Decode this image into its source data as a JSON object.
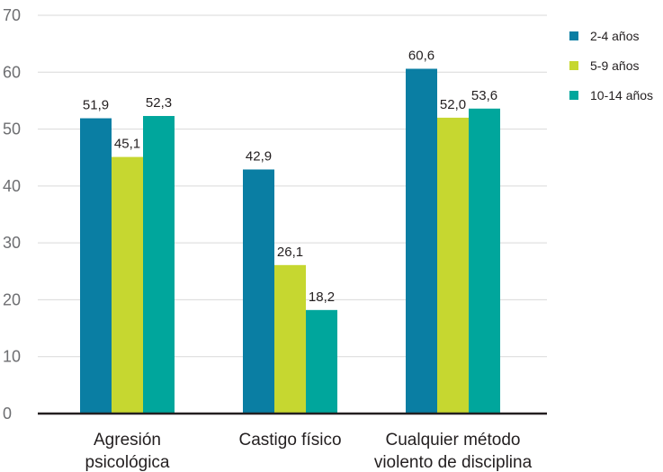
{
  "chart_data": {
    "type": "bar",
    "categories": [
      [
        "Agresión",
        "psicológica"
      ],
      [
        "Castigo físico"
      ],
      [
        "Cualquier método",
        "violento de disciplina"
      ]
    ],
    "series": [
      {
        "name": "2-4 años",
        "values": [
          51.9,
          42.9,
          60.6
        ],
        "labels": [
          "51,9",
          "42,9",
          "60,6"
        ],
        "color": "#0a7ea3"
      },
      {
        "name": "5-9 años",
        "values": [
          45.1,
          26.1,
          52.0
        ],
        "labels": [
          "45,1",
          "26,1",
          "52,0"
        ],
        "color": "#c6d730"
      },
      {
        "name": "10-14 años",
        "values": [
          52.3,
          18.2,
          53.6
        ],
        "labels": [
          "52,3",
          "18,2",
          "53,6"
        ],
        "color": "#00a69c"
      }
    ],
    "ylim": [
      0,
      70
    ],
    "yticks": [
      0,
      10,
      20,
      30,
      40,
      50,
      60,
      70
    ],
    "grid": true,
    "legend": "right"
  }
}
